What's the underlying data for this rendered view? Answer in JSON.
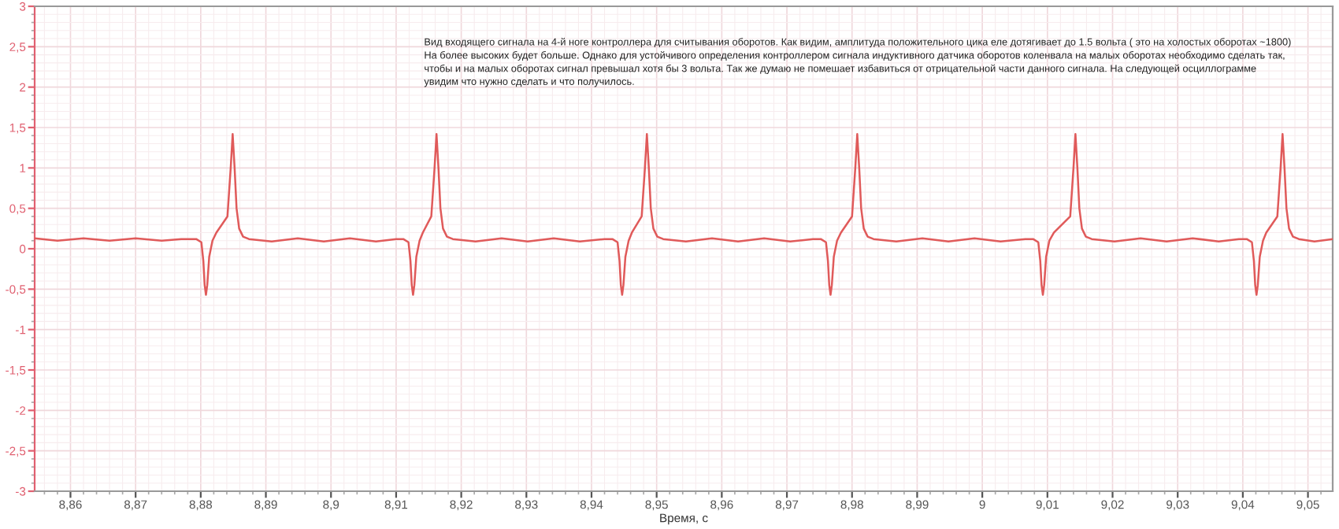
{
  "chart_data": {
    "type": "line",
    "xlabel": "Время, с",
    "annotations": [
      "Вид входящего сигнала на 4-й ноге контроллера для считывания оборотов. Как видим, амплитуда положительного цика еле дотягивает до 1.5 вольта ( это на холостых оборотах ~1800)\nНа более высоких будет больше. Однако для устойчивого определения контроллером сигнала индуктивного датчика оборотов коленвала на малых оборотах необходимо сделать так,\nчтобы и на малых оборотах сигнал превышал хотя бы 3 вольта. Так же думаю не помешает избавиться от отрицательной части данного сигнала. На следующей осциллограмме\nувидим что нужно сделать и что получилось."
    ],
    "xlim": [
      8.8545,
      9.0538
    ],
    "ylim": [
      -3,
      3
    ],
    "xticks": [
      {
        "value": 8.86,
        "label": "8,86"
      },
      {
        "value": 8.87,
        "label": "8,87"
      },
      {
        "value": 8.88,
        "label": "8,88"
      },
      {
        "value": 8.89,
        "label": "8,89"
      },
      {
        "value": 8.9,
        "label": "8,9"
      },
      {
        "value": 8.91,
        "label": "8,91"
      },
      {
        "value": 8.92,
        "label": "8,92"
      },
      {
        "value": 8.93,
        "label": "8,93"
      },
      {
        "value": 8.94,
        "label": "8,94"
      },
      {
        "value": 8.95,
        "label": "8,95"
      },
      {
        "value": 8.96,
        "label": "8,96"
      },
      {
        "value": 8.97,
        "label": "8,97"
      },
      {
        "value": 8.98,
        "label": "8,98"
      },
      {
        "value": 8.99,
        "label": "8,99"
      },
      9,
      {
        "value": 9.01,
        "label": "9,01"
      },
      {
        "value": 9.02,
        "label": "9,02"
      },
      {
        "value": 9.03,
        "label": "9,03"
      },
      {
        "value": 9.04,
        "label": "9,04"
      },
      {
        "value": 9.05,
        "label": "9,05"
      }
    ],
    "yticks": [
      -3,
      {
        "value": -2.5,
        "label": "-2,5"
      },
      -2,
      {
        "value": -1.5,
        "label": "-1,5"
      },
      -1,
      {
        "value": -0.5,
        "label": "-0,5"
      },
      0,
      {
        "value": 0.5,
        "label": "0,5"
      },
      1,
      {
        "value": 1.5,
        "label": "1,5"
      },
      2,
      {
        "value": 2.5,
        "label": "2,5"
      },
      3
    ],
    "grid": true,
    "legend": false,
    "marker": "none",
    "line_style": "solid",
    "series": [
      {
        "color": "#e05a5a",
        "x": [
          8.8545,
          8.858,
          8.862,
          8.866,
          8.87,
          8.874,
          8.877,
          8.8793,
          8.8801,
          8.8804,
          8.8806,
          8.8808,
          8.881,
          8.8813,
          8.8818,
          8.8824,
          8.8841,
          8.8846,
          8.8849,
          8.8852,
          8.8855,
          8.8859,
          8.8865,
          8.8874,
          8.8909,
          8.8949,
          8.8989,
          8.9029,
          8.9069,
          8.91,
          8.9111,
          8.9119,
          8.9122,
          8.9124,
          8.9126,
          8.9128,
          8.9131,
          8.9136,
          8.9141,
          8.9154,
          8.9159,
          8.9162,
          8.9165,
          8.9168,
          8.9172,
          8.9178,
          8.9187,
          8.9222,
          8.9262,
          8.9302,
          8.9342,
          8.9382,
          8.942,
          8.9432,
          8.944,
          8.9443,
          8.9445,
          8.9447,
          8.9449,
          8.9452,
          8.9457,
          8.9462,
          8.9477,
          8.9482,
          8.9485,
          8.9488,
          8.9491,
          8.9495,
          8.9501,
          8.951,
          8.9545,
          8.9585,
          8.9625,
          8.9665,
          8.9705,
          8.974,
          8.9752,
          8.976,
          8.9763,
          8.9765,
          8.9767,
          8.9769,
          8.9772,
          8.9777,
          8.9783,
          8.98,
          8.9805,
          8.9808,
          8.9811,
          8.9814,
          8.9818,
          8.9824,
          8.9833,
          8.9868,
          8.9908,
          8.9948,
          8.9988,
          9.0028,
          9.0066,
          9.0078,
          9.0086,
          9.0089,
          9.0091,
          9.0093,
          9.0095,
          9.0098,
          9.0103,
          9.011,
          9.0135,
          9.014,
          9.0143,
          9.0146,
          9.0149,
          9.0153,
          9.0159,
          9.0168,
          9.0203,
          9.0243,
          9.0283,
          9.0323,
          9.0363,
          9.0394,
          9.0406,
          9.0414,
          9.0417,
          9.0419,
          9.0421,
          9.0423,
          9.0426,
          9.0431,
          9.0436,
          9.0453,
          9.0458,
          9.0461,
          9.0464,
          9.0467,
          9.0471,
          9.0477,
          9.0486,
          9.051,
          9.0538
        ],
        "values": [
          0.13,
          0.1,
          0.13,
          0.1,
          0.13,
          0.1,
          0.12,
          0.12,
          0.08,
          -0.15,
          -0.45,
          -0.57,
          -0.45,
          -0.1,
          0.1,
          0.2,
          0.4,
          1.0,
          1.42,
          1.0,
          0.5,
          0.25,
          0.15,
          0.12,
          0.09,
          0.13,
          0.09,
          0.13,
          0.09,
          0.12,
          0.12,
          0.08,
          -0.15,
          -0.45,
          -0.57,
          -0.45,
          -0.1,
          0.1,
          0.2,
          0.4,
          1.0,
          1.42,
          1.0,
          0.5,
          0.25,
          0.15,
          0.12,
          0.09,
          0.13,
          0.09,
          0.13,
          0.09,
          0.12,
          0.12,
          0.08,
          -0.15,
          -0.45,
          -0.57,
          -0.45,
          -0.1,
          0.1,
          0.2,
          0.4,
          1.0,
          1.42,
          1.0,
          0.5,
          0.25,
          0.15,
          0.12,
          0.09,
          0.13,
          0.09,
          0.13,
          0.09,
          0.12,
          0.12,
          0.08,
          -0.15,
          -0.45,
          -0.57,
          -0.45,
          -0.1,
          0.1,
          0.2,
          0.4,
          1.0,
          1.42,
          1.0,
          0.5,
          0.25,
          0.15,
          0.12,
          0.09,
          0.13,
          0.09,
          0.13,
          0.09,
          0.12,
          0.12,
          0.08,
          -0.15,
          -0.45,
          -0.57,
          -0.45,
          -0.1,
          0.1,
          0.2,
          0.4,
          1.0,
          1.42,
          1.0,
          0.5,
          0.25,
          0.15,
          0.12,
          0.09,
          0.13,
          0.09,
          0.13,
          0.09,
          0.12,
          0.12,
          0.08,
          -0.15,
          -0.45,
          -0.57,
          -0.45,
          -0.1,
          0.1,
          0.2,
          0.4,
          1.0,
          1.42,
          1.0,
          0.5,
          0.25,
          0.15,
          0.12,
          0.09,
          0.12
        ]
      }
    ]
  }
}
